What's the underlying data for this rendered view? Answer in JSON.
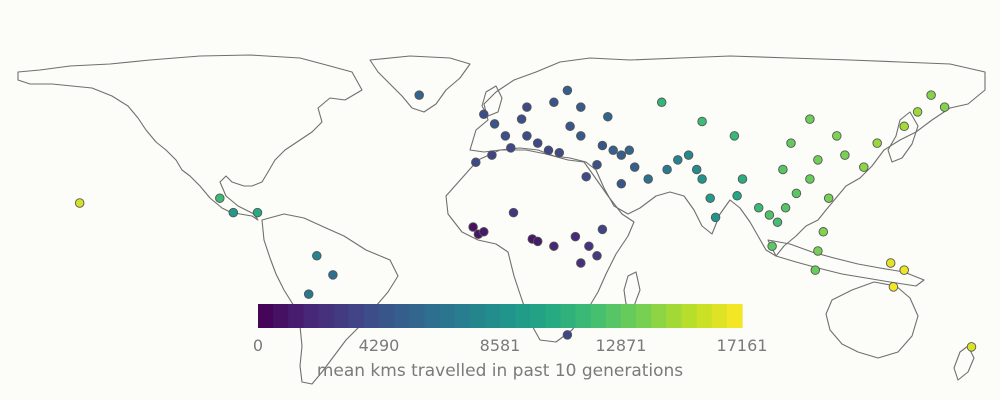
{
  "colorbar": {
    "ticks": [
      "0",
      "4290",
      "8581",
      "12871",
      "17161"
    ],
    "title": "mean kms travelled in past 10 generations",
    "min": 0,
    "max": 17161,
    "colors": [
      "#440154",
      "#482475",
      "#414487",
      "#355f8d",
      "#2a788e",
      "#21918c",
      "#22a884",
      "#44bf70",
      "#7ad151",
      "#bddf26",
      "#fde725"
    ]
  },
  "chart_data": {
    "type": "scatter",
    "projection": "equirectangular",
    "color_variable": "mean kms travelled in past 10 generations",
    "points": [
      {
        "lon": -156,
        "lat": 20,
        "value": 16000
      },
      {
        "lon": -104,
        "lat": 22,
        "value": 11600
      },
      {
        "lon": -99,
        "lat": 16,
        "value": 9200
      },
      {
        "lon": -90,
        "lat": 16,
        "value": 10500
      },
      {
        "lon": -68,
        "lat": -2,
        "value": 7800
      },
      {
        "lon": -62,
        "lat": -10,
        "value": 6200
      },
      {
        "lon": -71,
        "lat": -18,
        "value": 6800
      },
      {
        "lon": -30,
        "lat": 65,
        "value": 5500
      },
      {
        "lon": -9,
        "lat": 37,
        "value": 3800
      },
      {
        "lon": -3,
        "lat": 40,
        "value": 3400
      },
      {
        "lon": 4,
        "lat": 43,
        "value": 3600
      },
      {
        "lon": 2,
        "lat": 48,
        "value": 4200
      },
      {
        "lon": -2,
        "lat": 53,
        "value": 4500
      },
      {
        "lon": -6,
        "lat": 57,
        "value": 4000
      },
      {
        "lon": 8,
        "lat": 55,
        "value": 4100
      },
      {
        "lon": 10,
        "lat": 60,
        "value": 3800
      },
      {
        "lon": 20,
        "lat": 62,
        "value": 4300
      },
      {
        "lon": 25,
        "lat": 67,
        "value": 5200
      },
      {
        "lon": 30,
        "lat": 60,
        "value": 4900
      },
      {
        "lon": 10,
        "lat": 48,
        "value": 4000
      },
      {
        "lon": 14,
        "lat": 45,
        "value": 3700
      },
      {
        "lon": 18,
        "lat": 42,
        "value": 3600
      },
      {
        "lon": 22,
        "lat": 41,
        "value": 3900
      },
      {
        "lon": 26,
        "lat": 52,
        "value": 4500
      },
      {
        "lon": 30,
        "lat": 48,
        "value": 4800
      },
      {
        "lon": 40,
        "lat": 56,
        "value": 5700
      },
      {
        "lon": 38,
        "lat": 44,
        "value": 4600
      },
      {
        "lon": 42,
        "lat": 42,
        "value": 5300
      },
      {
        "lon": 45,
        "lat": 40,
        "value": 5100
      },
      {
        "lon": 48,
        "lat": 42,
        "value": 5600
      },
      {
        "lon": 36,
        "lat": 36,
        "value": 4200
      },
      {
        "lon": 32,
        "lat": 31,
        "value": 3900
      },
      {
        "lon": 45,
        "lat": 28,
        "value": 4600
      },
      {
        "lon": 50,
        "lat": 35,
        "value": 5200
      },
      {
        "lon": 55,
        "lat": 30,
        "value": 6400
      },
      {
        "lon": 62,
        "lat": 34,
        "value": 7000
      },
      {
        "lon": 66,
        "lat": 38,
        "value": 7600
      },
      {
        "lon": 70,
        "lat": 40,
        "value": 8000
      },
      {
        "lon": 73,
        "lat": 34,
        "value": 8200
      },
      {
        "lon": 75,
        "lat": 30,
        "value": 8900
      },
      {
        "lon": 78,
        "lat": 22,
        "value": 9400
      },
      {
        "lon": 80,
        "lat": 14,
        "value": 8800
      },
      {
        "lon": 88,
        "lat": 23,
        "value": 10300
      },
      {
        "lon": 90,
        "lat": 30,
        "value": 10700
      },
      {
        "lon": 96,
        "lat": 18,
        "value": 11500
      },
      {
        "lon": 100,
        "lat": 15,
        "value": 12300
      },
      {
        "lon": 103,
        "lat": 12,
        "value": 11900
      },
      {
        "lon": 106,
        "lat": 18,
        "value": 12500
      },
      {
        "lon": 101,
        "lat": 2,
        "value": 12800
      },
      {
        "lon": 110,
        "lat": 24,
        "value": 12700
      },
      {
        "lon": 115,
        "lat": 30,
        "value": 13100
      },
      {
        "lon": 118,
        "lat": 38,
        "value": 13400
      },
      {
        "lon": 105,
        "lat": 34,
        "value": 12600
      },
      {
        "lon": 108,
        "lat": 45,
        "value": 13000
      },
      {
        "lon": 87,
        "lat": 48,
        "value": 11400
      },
      {
        "lon": 75,
        "lat": 54,
        "value": 11700
      },
      {
        "lon": 60,
        "lat": 62,
        "value": 11300
      },
      {
        "lon": 115,
        "lat": 55,
        "value": 13300
      },
      {
        "lon": 125,
        "lat": 48,
        "value": 13800
      },
      {
        "lon": 128,
        "lat": 40,
        "value": 13700
      },
      {
        "lon": 135,
        "lat": 35,
        "value": 14200
      },
      {
        "lon": 140,
        "lat": 45,
        "value": 14500
      },
      {
        "lon": 150,
        "lat": 52,
        "value": 14800
      },
      {
        "lon": 155,
        "lat": 58,
        "value": 14600
      },
      {
        "lon": 160,
        "lat": 65,
        "value": 14000
      },
      {
        "lon": 165,
        "lat": 60,
        "value": 13900
      },
      {
        "lon": 122,
        "lat": 22,
        "value": 13600
      },
      {
        "lon": 120,
        "lat": 8,
        "value": 13900
      },
      {
        "lon": 118,
        "lat": 0,
        "value": 13500
      },
      {
        "lon": 117,
        "lat": -8,
        "value": 13200
      },
      {
        "lon": 145,
        "lat": -5,
        "value": 16500
      },
      {
        "lon": 150,
        "lat": -8,
        "value": 16700
      },
      {
        "lon": 146,
        "lat": -15,
        "value": 16900
      },
      {
        "lon": 175,
        "lat": -40,
        "value": 16200
      },
      {
        "lon": -10,
        "lat": 10,
        "value": 800
      },
      {
        "lon": -8,
        "lat": 7,
        "value": 1000
      },
      {
        "lon": -6,
        "lat": 8,
        "value": 1200
      },
      {
        "lon": 5,
        "lat": 16,
        "value": 2700
      },
      {
        "lon": 12,
        "lat": 5,
        "value": 1100
      },
      {
        "lon": 14,
        "lat": 4,
        "value": 1300
      },
      {
        "lon": 20,
        "lat": 2,
        "value": 1800
      },
      {
        "lon": 28,
        "lat": 6,
        "value": 2100
      },
      {
        "lon": 33,
        "lat": 2,
        "value": 2500
      },
      {
        "lon": 36,
        "lat": -2,
        "value": 3000
      },
      {
        "lon": 38,
        "lat": 9,
        "value": 3400
      },
      {
        "lon": 30,
        "lat": -5,
        "value": 2300
      },
      {
        "lon": 25,
        "lat": -35,
        "value": 3600
      },
      {
        "lon": 20,
        "lat": -30,
        "value": 3200
      }
    ]
  }
}
